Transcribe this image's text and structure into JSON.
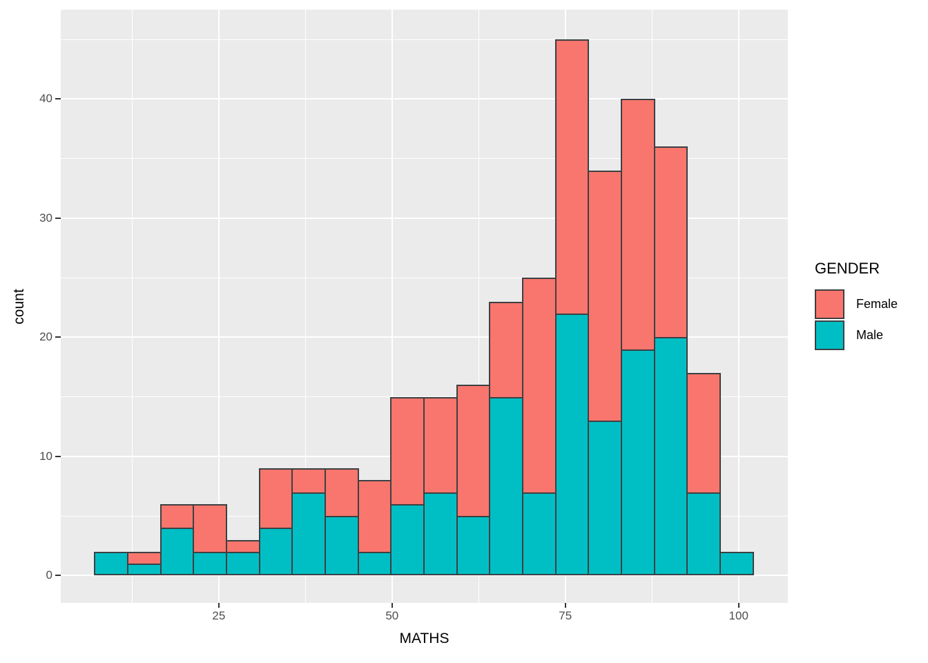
{
  "figure": {
    "x_axis_title": "MATHS",
    "y_axis_title": "count"
  },
  "legend": {
    "title": "GENDER",
    "items": [
      {
        "label": "Female",
        "color": "#F8766D"
      },
      {
        "label": "Male",
        "color": "#00BFC4"
      }
    ]
  },
  "colors": {
    "panel_background": "#EBEBEB",
    "gridline": "#FFFFFF",
    "bar_border": "#3C4043",
    "tick_label": "#4D4D4D",
    "axis_title": "#000000",
    "female_fill": "#F8766D",
    "male_fill": "#00BFC4"
  },
  "chart_data": {
    "type": "bar",
    "subtype": "stacked-histogram",
    "title": "",
    "xlabel": "MATHS",
    "ylabel": "count",
    "bin_start": 7,
    "bin_width": 4.75,
    "bin_left_edges": [
      7,
      11.75,
      16.5,
      21.25,
      26,
      30.75,
      35.5,
      40.25,
      45,
      49.75,
      54.5,
      59.25,
      64,
      68.75,
      73.5,
      78.25,
      83,
      87.75,
      92.5,
      97.25
    ],
    "series": [
      {
        "name": "Male",
        "color": "#00BFC4",
        "values": [
          2,
          1,
          4,
          2,
          2,
          4,
          7,
          5,
          2,
          6,
          7,
          5,
          15,
          7,
          22,
          13,
          19,
          20,
          7,
          2
        ]
      },
      {
        "name": "Female",
        "color": "#F8766D",
        "values": [
          0,
          1,
          2,
          4,
          1,
          5,
          2,
          4,
          6,
          9,
          8,
          11,
          8,
          18,
          23,
          21,
          21,
          16,
          10,
          0
        ]
      }
    ],
    "totals": [
      2,
      2,
      6,
      6,
      3,
      9,
      9,
      9,
      8,
      15,
      15,
      16,
      23,
      25,
      45,
      34,
      40,
      36,
      17,
      2
    ],
    "x_ticks": [
      25,
      50,
      75,
      100
    ],
    "y_ticks": [
      0,
      10,
      20,
      30,
      40
    ],
    "x_minor": [
      12.5,
      37.5,
      62.5,
      87.5
    ],
    "y_minor": [
      5,
      15,
      25,
      35,
      45
    ],
    "x_domain": [
      2.2,
      107.1
    ],
    "y_domain": [
      -2.3,
      47.5
    ],
    "legend_position": "right",
    "grid": true
  }
}
